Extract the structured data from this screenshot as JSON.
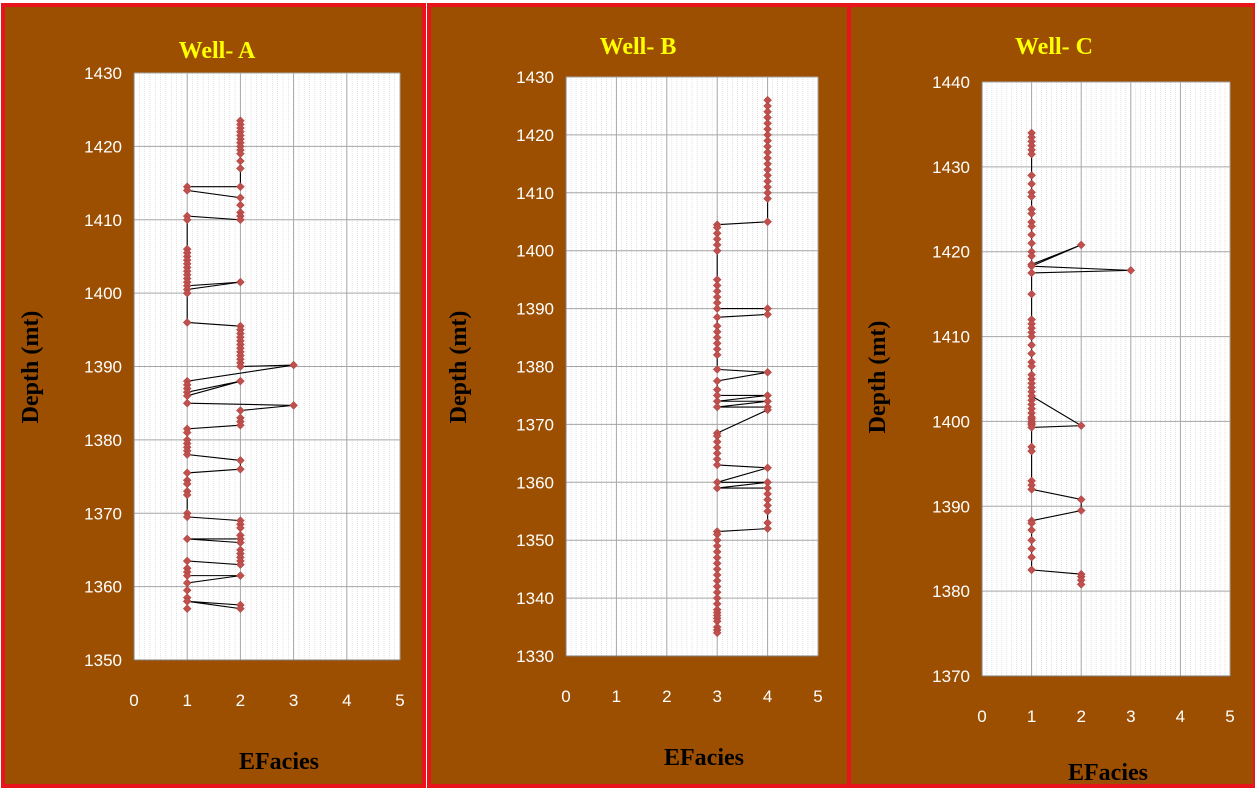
{
  "colors": {
    "panel_bg": "#9c4f00",
    "panel_border": "#e8141c",
    "title": "#ffff00",
    "marker": "#c0504d",
    "line": "#000000",
    "grid_major": "#a6a6a6",
    "grid_minor": "#d0d0d0",
    "plot_bg": "#ffffff"
  },
  "chart_data": [
    {
      "type": "line",
      "title": "Well- A",
      "xlabel": "EFacies",
      "ylabel": "Depth (mt)",
      "xlim": [
        0,
        5
      ],
      "ylim": [
        1350,
        1430
      ],
      "xticks": [
        "0",
        "1",
        "2",
        "3",
        "4",
        "5"
      ],
      "yticks": [
        "1350",
        "1360",
        "1370",
        "1380",
        "1390",
        "1400",
        "1410",
        "1420",
        "1430"
      ],
      "grid": true,
      "x": [
        2,
        2,
        2,
        2,
        2,
        2,
        2,
        2,
        2,
        2,
        2,
        2,
        2,
        1,
        1,
        2,
        2,
        2,
        2,
        2,
        1,
        1,
        1,
        1,
        1,
        1,
        1,
        1,
        1,
        1,
        1,
        1,
        1,
        2,
        1,
        1,
        1,
        2,
        2,
        2,
        2,
        2,
        2,
        2,
        2,
        2,
        2,
        2,
        2,
        3,
        1,
        1,
        1,
        1,
        2,
        1,
        1,
        3,
        2,
        2,
        2,
        2,
        1,
        1,
        1,
        1,
        1,
        1,
        1,
        2,
        2,
        1,
        1,
        1,
        1,
        1,
        1,
        1,
        2,
        2,
        2,
        2,
        2,
        1,
        2,
        2,
        2,
        2,
        2,
        2,
        1,
        1,
        1,
        1,
        2,
        1,
        1,
        1,
        1,
        2,
        2,
        1,
        1
      ],
      "y": [
        1423.5,
        1423,
        1422.5,
        1422,
        1421.5,
        1421,
        1420.5,
        1420,
        1419.5,
        1419,
        1418,
        1417,
        1414.5,
        1414.5,
        1414,
        1413,
        1412,
        1411,
        1410.5,
        1410,
        1410.5,
        1410,
        1406,
        1405.5,
        1405,
        1404.5,
        1404,
        1403.5,
        1403,
        1402.5,
        1402,
        1401.5,
        1401,
        1401.5,
        1400.5,
        1400,
        1396,
        1395.5,
        1395,
        1394.5,
        1394,
        1393.5,
        1393,
        1392.5,
        1392,
        1391.5,
        1391,
        1390.5,
        1390,
        1390.2,
        1388,
        1387.5,
        1387,
        1386.5,
        1388,
        1386,
        1385,
        1384.7,
        1384,
        1383,
        1382.5,
        1382,
        1381.5,
        1381,
        1380,
        1379.5,
        1379,
        1378.5,
        1378,
        1377.2,
        1376,
        1375.5,
        1374.5,
        1374,
        1373,
        1372.5,
        1370,
        1369.5,
        1369,
        1368.5,
        1368,
        1367,
        1366.5,
        1366.5,
        1366,
        1365,
        1364.5,
        1364,
        1363.5,
        1363,
        1363.5,
        1362.5,
        1362,
        1361.5,
        1361.5,
        1360.5,
        1359.5,
        1358.5,
        1358,
        1357.5,
        1357,
        1358,
        1357
      ]
    },
    {
      "type": "line",
      "title": "Well- B",
      "xlabel": "EFacies",
      "ylabel": "Depth (mt)",
      "xlim": [
        0,
        5
      ],
      "ylim": [
        1330,
        1430
      ],
      "xticks": [
        "0",
        "1",
        "2",
        "3",
        "4",
        "5"
      ],
      "yticks": [
        "1330",
        "1340",
        "1350",
        "1360",
        "1370",
        "1380",
        "1390",
        "1400",
        "1410",
        "1420",
        "1430"
      ],
      "grid": true,
      "x": [
        4,
        4,
        4,
        4,
        4,
        4,
        4,
        4,
        4,
        4,
        4,
        4,
        4,
        4,
        4,
        4,
        4,
        4,
        4,
        3,
        3,
        3,
        3,
        3,
        3,
        3,
        3,
        3,
        3,
        3,
        3,
        4,
        4,
        3,
        3,
        3,
        3,
        3,
        3,
        3,
        3,
        4,
        3,
        3,
        3,
        4,
        3,
        4,
        3,
        4,
        4,
        3,
        3,
        3,
        3,
        3,
        3,
        3,
        4,
        3,
        4,
        3,
        4,
        4,
        4,
        4,
        4,
        4,
        4,
        3,
        3,
        3,
        3,
        3,
        3,
        3,
        3,
        3,
        3,
        3,
        3,
        3,
        3,
        3,
        3,
        3,
        3,
        3,
        3,
        3,
        3
      ],
      "y": [
        1426,
        1425,
        1424,
        1423,
        1422,
        1421,
        1420,
        1419,
        1418,
        1417,
        1416,
        1415,
        1414,
        1413,
        1412,
        1411,
        1410,
        1409,
        1405,
        1404.5,
        1404,
        1403,
        1402,
        1401,
        1400,
        1395,
        1394,
        1393,
        1392,
        1391,
        1390,
        1390,
        1389,
        1388.5,
        1387,
        1386,
        1385,
        1384,
        1383,
        1382,
        1379.5,
        1379,
        1377.5,
        1376,
        1375,
        1375,
        1374,
        1374,
        1373,
        1373,
        1372.5,
        1368.5,
        1368,
        1367,
        1366,
        1365,
        1364,
        1363,
        1362.5,
        1360,
        1360,
        1359,
        1359,
        1358,
        1357,
        1356,
        1355,
        1353,
        1352,
        1351.5,
        1351,
        1350,
        1349,
        1348,
        1347,
        1346,
        1345,
        1344,
        1343,
        1342,
        1341,
        1340,
        1339,
        1338,
        1337.5,
        1337,
        1336.5,
        1336,
        1335,
        1334.5,
        1334
      ]
    },
    {
      "type": "line",
      "title": "Well- C",
      "xlabel": "EFacies",
      "ylabel": "Depth (mt)",
      "xlim": [
        0,
        5
      ],
      "ylim": [
        1370,
        1440
      ],
      "xticks": [
        "0",
        "1",
        "2",
        "3",
        "4",
        "5"
      ],
      "yticks": [
        "1370",
        "1380",
        "1390",
        "1400",
        "1410",
        "1420",
        "1430",
        "1440"
      ],
      "grid": true,
      "x": [
        1,
        1,
        1,
        1,
        1,
        1,
        1,
        1,
        1,
        1,
        1,
        1,
        1,
        1,
        1,
        1,
        1,
        1,
        1,
        2,
        1,
        3,
        1,
        1,
        1,
        1,
        1,
        1,
        1,
        1,
        1,
        1,
        1,
        1,
        1,
        1,
        1,
        1,
        1,
        1,
        1,
        1,
        1,
        1,
        1,
        1,
        1,
        1,
        1,
        2,
        1,
        1,
        1,
        1,
        1,
        1,
        2,
        2,
        1,
        1,
        1,
        1,
        1,
        1,
        1,
        2,
        2,
        2,
        2
      ],
      "y": [
        1434,
        1433.5,
        1433,
        1432.5,
        1432,
        1431.5,
        1429,
        1428,
        1427,
        1426.5,
        1425,
        1424.5,
        1423.5,
        1423,
        1422,
        1421,
        1420,
        1419.5,
        1418.5,
        1420.8,
        1418.3,
        1417.8,
        1417.5,
        1415,
        1412,
        1411.5,
        1411,
        1410.5,
        1410,
        1409,
        1408,
        1407,
        1406.5,
        1405.5,
        1405,
        1404.5,
        1404,
        1403.5,
        1403,
        1402.5,
        1402,
        1401.5,
        1401,
        1400.5,
        1400.3,
        1400,
        1399.8,
        1399.6,
        1399.3,
        1399.5,
        1403,
        1397,
        1396.5,
        1393,
        1392.5,
        1392,
        1390.8,
        1389.5,
        1388.3,
        1388,
        1387.2,
        1386,
        1385,
        1384,
        1382.5,
        1382,
        1381.7,
        1381.3,
        1380.8
      ]
    }
  ]
}
